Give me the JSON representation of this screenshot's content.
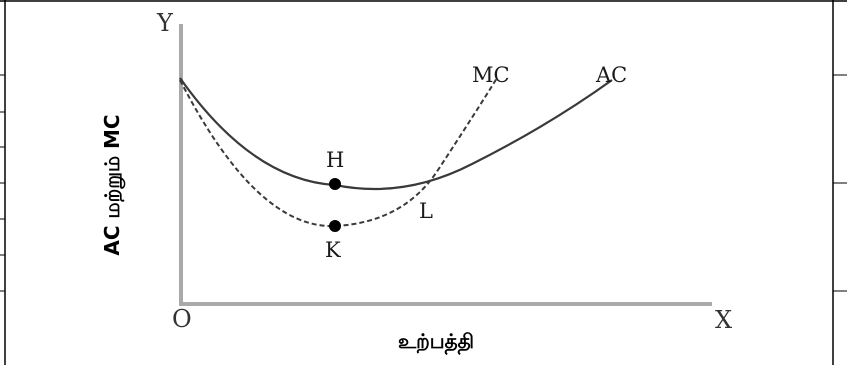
{
  "axes": {
    "y_letter": "Y",
    "x_letter": "X",
    "origin_letter": "O",
    "y_title": "AC மற்றும் MC",
    "x_title": "உற்பத்தி"
  },
  "curves": {
    "mc_label": "MC",
    "ac_label": "AC"
  },
  "points": {
    "h_label": "H",
    "k_label": "K",
    "l_label": "L"
  },
  "colors": {
    "curves": "#3a3a3a",
    "axes": "#a9a9a9",
    "points": "#000000"
  }
}
